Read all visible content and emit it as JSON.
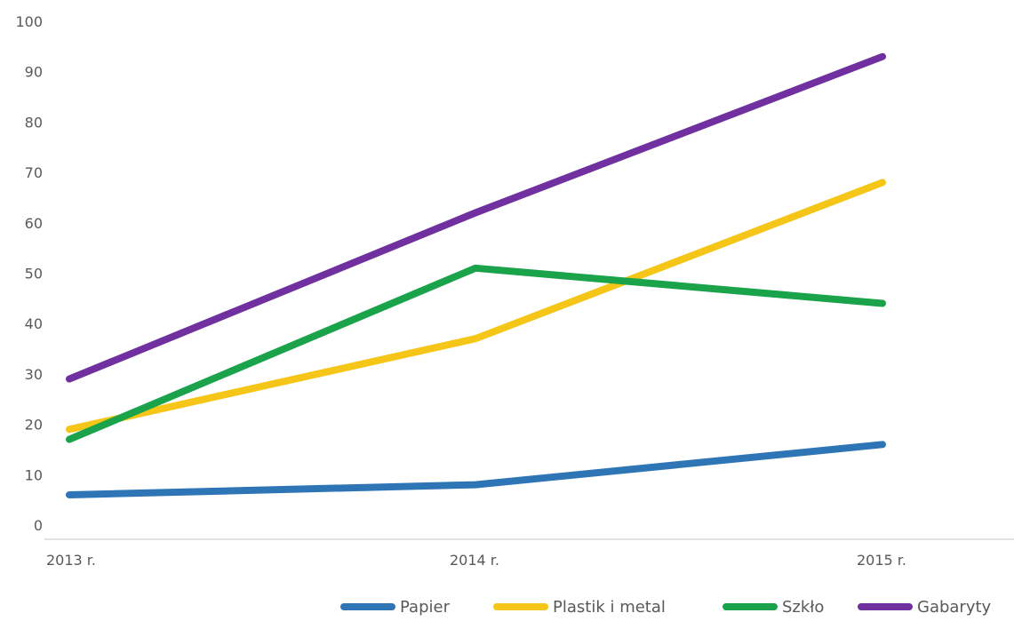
{
  "chart_data": {
    "type": "line",
    "title": "",
    "xlabel": "",
    "ylabel": "",
    "categories": [
      "2013 r.",
      "2014 r.",
      "2015 r."
    ],
    "ylim": [
      0,
      100
    ],
    "yticks": [
      0,
      10,
      20,
      30,
      40,
      50,
      60,
      70,
      80,
      90,
      100
    ],
    "grid": false,
    "legend_position": "bottom-right",
    "series": [
      {
        "name": "Papier",
        "color": "#2E75B6",
        "values": [
          6,
          8,
          16
        ]
      },
      {
        "name": "Plastik i metal",
        "color": "#F5C518",
        "values": [
          19,
          37,
          68
        ]
      },
      {
        "name": "Szkło",
        "color": "#1AA34A",
        "values": [
          17,
          51,
          44
        ]
      },
      {
        "name": "Gabaryty",
        "color": "#7030A0",
        "values": [
          29,
          62,
          93
        ]
      }
    ]
  }
}
